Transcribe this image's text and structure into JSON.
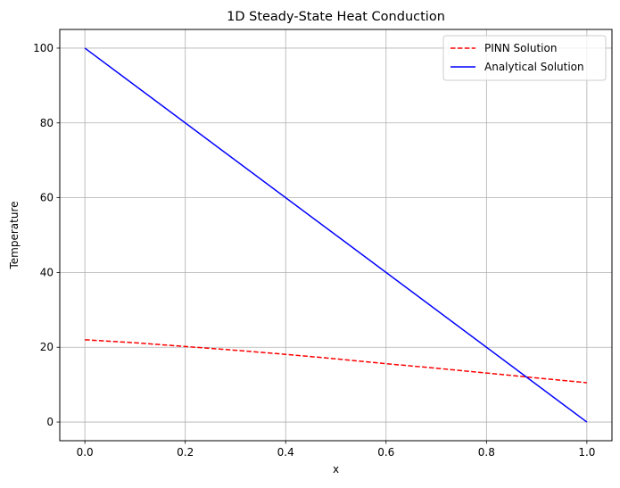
{
  "chart_data": {
    "type": "line",
    "title": "1D Steady-State Heat Conduction",
    "xlabel": "x",
    "ylabel": "Temperature",
    "xlim": [
      -0.05,
      1.05
    ],
    "ylim": [
      -5,
      105
    ],
    "xticks": [
      0.0,
      0.2,
      0.4,
      0.6,
      0.8,
      1.0
    ],
    "xtick_labels": [
      "0.0",
      "0.2",
      "0.4",
      "0.6",
      "0.8",
      "1.0"
    ],
    "yticks": [
      0,
      20,
      40,
      60,
      80,
      100
    ],
    "ytick_labels": [
      "0",
      "20",
      "40",
      "60",
      "80",
      "100"
    ],
    "grid": true,
    "legend_position": "upper-right",
    "series": [
      {
        "name": "PINN Solution",
        "color": "#ff0000",
        "style": "dashed",
        "x": [
          0.0,
          0.1,
          0.2,
          0.3,
          0.4,
          0.5,
          0.6,
          0.7,
          0.8,
          0.9,
          1.0
        ],
        "y": [
          22.0,
          21.2,
          20.2,
          19.2,
          18.1,
          16.9,
          15.6,
          14.4,
          13.1,
          11.8,
          10.5
        ]
      },
      {
        "name": "Analytical Solution",
        "color": "#0000ff",
        "style": "solid",
        "x": [
          0.0,
          1.0
        ],
        "y": [
          100.0,
          0.0
        ]
      }
    ]
  }
}
